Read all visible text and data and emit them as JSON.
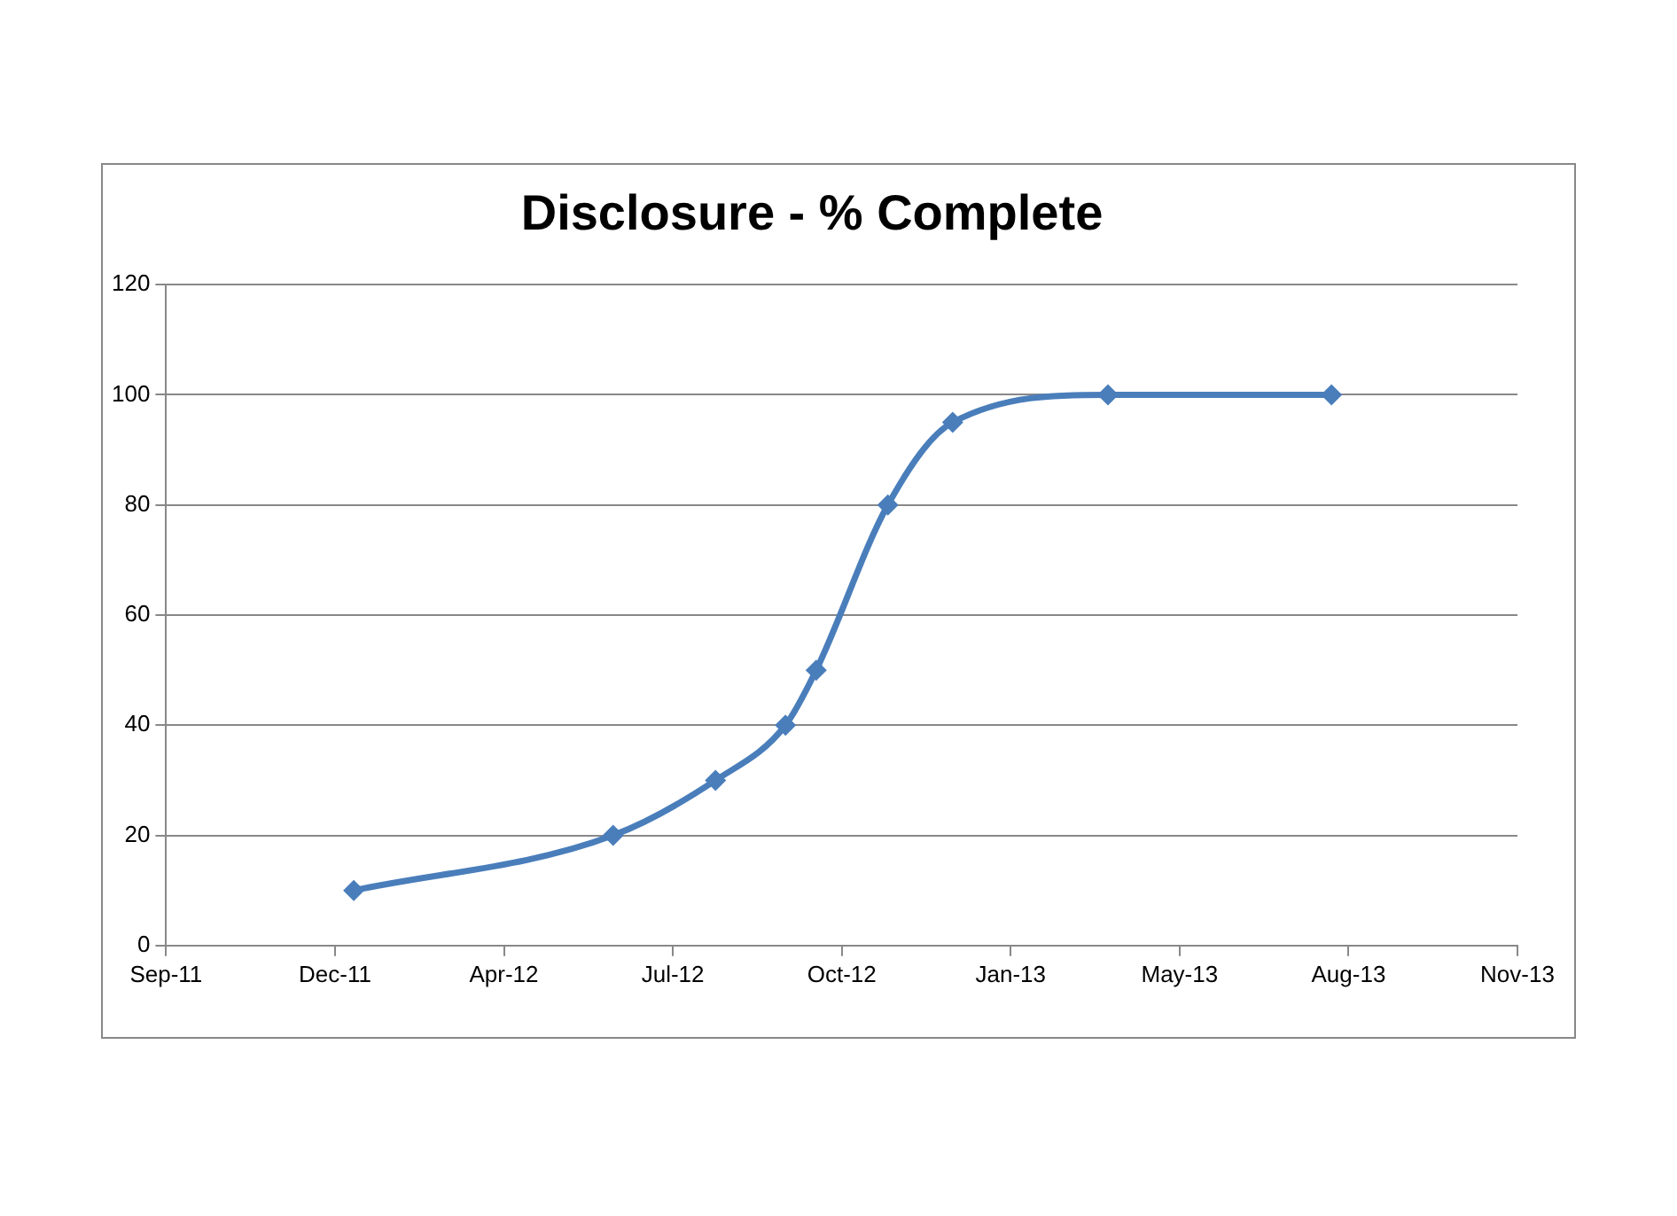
{
  "chart_data": {
    "type": "line",
    "title": "Disclosure - % Complete",
    "x": [
      "2012-01-08",
      "2012-06-08",
      "2012-08-07",
      "2012-09-17",
      "2012-10-05",
      "2012-11-16",
      "2012-12-24",
      "2013-03-25",
      "2013-08-03"
    ],
    "series": [
      {
        "color": "#4a7ebb",
        "values": [
          10,
          20,
          30,
          40,
          50,
          80,
          95,
          100,
          100
        ]
      }
    ],
    "xlim": [
      "2011-09-20",
      "2013-11-20"
    ],
    "xticks": [
      {
        "value": "2011-09-20",
        "label": "Sep-11"
      },
      {
        "value": "2011-12-28",
        "label": "Dec-11"
      },
      {
        "value": "2012-04-05",
        "label": "Apr-12"
      },
      {
        "value": "2012-07-13",
        "label": "Jul-12"
      },
      {
        "value": "2012-10-20",
        "label": "Oct-12"
      },
      {
        "value": "2013-01-27",
        "label": "Jan-13"
      },
      {
        "value": "2013-05-06",
        "label": "May-13"
      },
      {
        "value": "2013-08-13",
        "label": "Aug-13"
      },
      {
        "value": "2013-11-20",
        "label": "Nov-13"
      }
    ],
    "ylim": [
      0,
      120
    ],
    "yticks": [
      0,
      20,
      40,
      60,
      80,
      100,
      120
    ],
    "grid": "y",
    "legend": false,
    "marker": "diamond",
    "line_style": "solid"
  }
}
